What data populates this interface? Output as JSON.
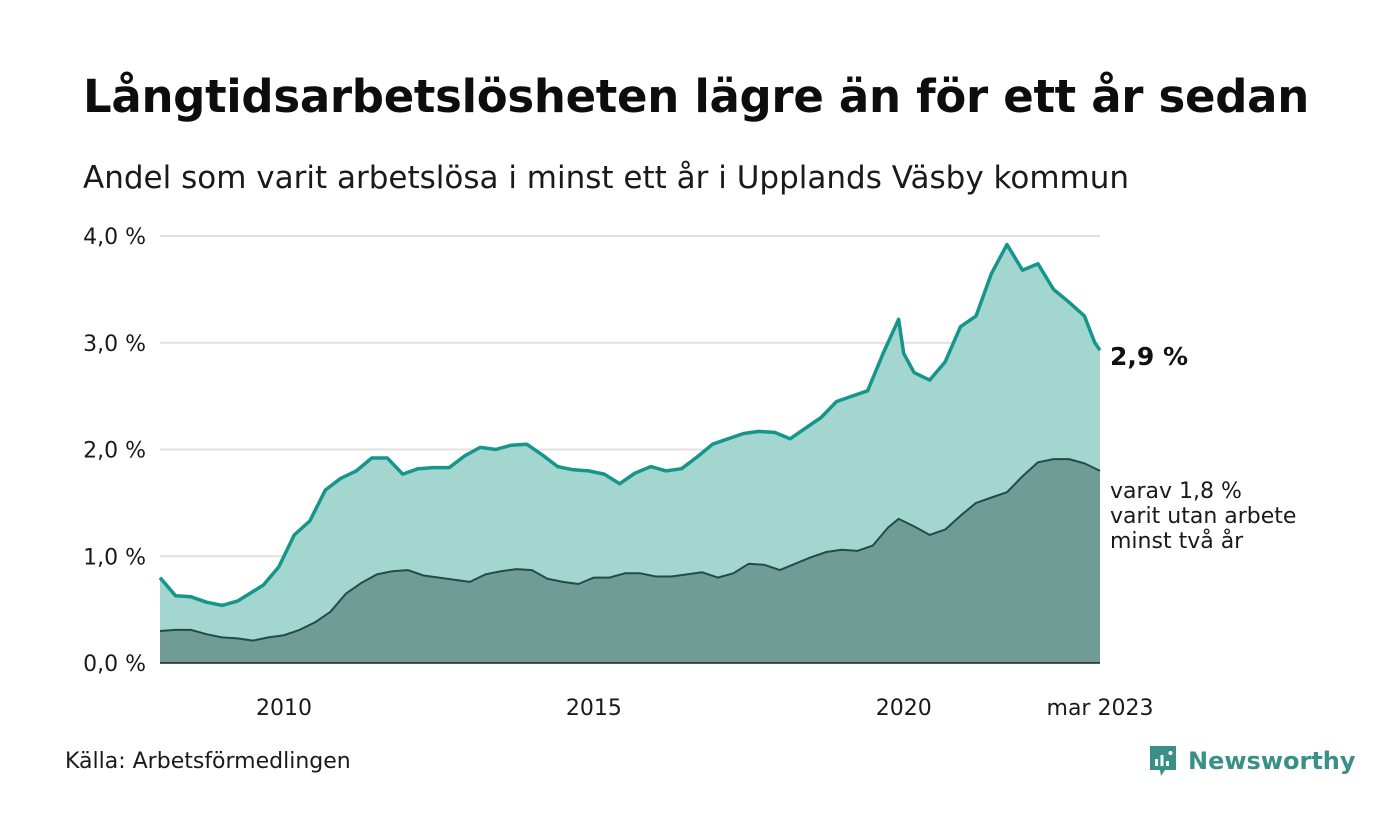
{
  "title": "Långtidsarbetslösheten lägre än för ett år sedan",
  "subtitle": "Andel som varit arbetslösa i minst ett år i Upplands Väsby kommun",
  "source": "Källa: Arbetsförmedlingen",
  "brand": {
    "name": "Newsworthy",
    "icon": "newsworthy-logo-icon",
    "color": "#3a8f86"
  },
  "colors": {
    "total_line": "#16968a",
    "total_fill": "#a2d6cf",
    "twoyear_line": "#214d47",
    "twoyear_fill": "#6f9d95",
    "grid": "#e1e1e1",
    "baseline": "#222222"
  },
  "chart_data": {
    "type": "area",
    "x_start": "2008-01",
    "x_end": "2023-03",
    "ylim": [
      0,
      4
    ],
    "yticks": [
      {
        "value": 0,
        "label": "0,0 %"
      },
      {
        "value": 1,
        "label": "1,0 %"
      },
      {
        "value": 2,
        "label": "2,0 %"
      },
      {
        "value": 3,
        "label": "3,0 %"
      },
      {
        "value": 4,
        "label": "4,0 %"
      }
    ],
    "xticks": [
      {
        "date": "2010-01",
        "label": "2010"
      },
      {
        "date": "2015-01",
        "label": "2015"
      },
      {
        "date": "2020-01",
        "label": "2020"
      },
      {
        "date": "2023-03",
        "label": "mar 2023"
      }
    ],
    "grid": true,
    "series": [
      {
        "key": "total",
        "end_label": "2,9 %",
        "points": [
          [
            "2008-01",
            0.8
          ],
          [
            "2008-04",
            0.63
          ],
          [
            "2008-07",
            0.62
          ],
          [
            "2008-10",
            0.57
          ],
          [
            "2009-01",
            0.54
          ],
          [
            "2009-04",
            0.58
          ],
          [
            "2009-07",
            0.67
          ],
          [
            "2009-09",
            0.73
          ],
          [
            "2009-12",
            0.9
          ],
          [
            "2010-03",
            1.2
          ],
          [
            "2010-06",
            1.33
          ],
          [
            "2010-09",
            1.62
          ],
          [
            "2010-12",
            1.73
          ],
          [
            "2011-03",
            1.8
          ],
          [
            "2011-06",
            1.92
          ],
          [
            "2011-09",
            1.92
          ],
          [
            "2011-12",
            1.77
          ],
          [
            "2012-03",
            1.82
          ],
          [
            "2012-06",
            1.83
          ],
          [
            "2012-09",
            1.83
          ],
          [
            "2012-12",
            1.94
          ],
          [
            "2013-03",
            2.02
          ],
          [
            "2013-06",
            2.0
          ],
          [
            "2013-09",
            2.04
          ],
          [
            "2013-12",
            2.05
          ],
          [
            "2014-03",
            1.95
          ],
          [
            "2014-06",
            1.84
          ],
          [
            "2014-09",
            1.81
          ],
          [
            "2014-12",
            1.8
          ],
          [
            "2015-03",
            1.77
          ],
          [
            "2015-06",
            1.68
          ],
          [
            "2015-09",
            1.78
          ],
          [
            "2015-12",
            1.84
          ],
          [
            "2016-03",
            1.8
          ],
          [
            "2016-06",
            1.82
          ],
          [
            "2016-09",
            1.93
          ],
          [
            "2016-12",
            2.05
          ],
          [
            "2017-03",
            2.1
          ],
          [
            "2017-06",
            2.15
          ],
          [
            "2017-09",
            2.17
          ],
          [
            "2017-12",
            2.16
          ],
          [
            "2018-03",
            2.1
          ],
          [
            "2018-06",
            2.2
          ],
          [
            "2018-09",
            2.3
          ],
          [
            "2018-12",
            2.45
          ],
          [
            "2019-03",
            2.5
          ],
          [
            "2019-06",
            2.55
          ],
          [
            "2019-09",
            2.9
          ],
          [
            "2019-12",
            3.22
          ],
          [
            "2020-01",
            2.9
          ],
          [
            "2020-03",
            2.72
          ],
          [
            "2020-06",
            2.65
          ],
          [
            "2020-09",
            2.82
          ],
          [
            "2020-12",
            3.15
          ],
          [
            "2021-03",
            3.25
          ],
          [
            "2021-06",
            3.65
          ],
          [
            "2021-09",
            3.92
          ],
          [
            "2021-12",
            3.68
          ],
          [
            "2022-03",
            3.74
          ],
          [
            "2022-06",
            3.5
          ],
          [
            "2022-09",
            3.38
          ],
          [
            "2022-12",
            3.25
          ],
          [
            "2023-02",
            3.0
          ],
          [
            "2023-03",
            2.93
          ]
        ]
      },
      {
        "key": "twoyear",
        "end_label": [
          "varav 1,8 %",
          "varit utan arbete",
          "minst två år"
        ],
        "points": [
          [
            "2008-01",
            0.3
          ],
          [
            "2008-04",
            0.31
          ],
          [
            "2008-07",
            0.31
          ],
          [
            "2008-10",
            0.27
          ],
          [
            "2009-01",
            0.24
          ],
          [
            "2009-04",
            0.23
          ],
          [
            "2009-07",
            0.21
          ],
          [
            "2009-10",
            0.24
          ],
          [
            "2010-01",
            0.26
          ],
          [
            "2010-04",
            0.31
          ],
          [
            "2010-07",
            0.38
          ],
          [
            "2010-10",
            0.48
          ],
          [
            "2011-01",
            0.65
          ],
          [
            "2011-04",
            0.75
          ],
          [
            "2011-07",
            0.83
          ],
          [
            "2011-10",
            0.86
          ],
          [
            "2012-01",
            0.87
          ],
          [
            "2012-04",
            0.82
          ],
          [
            "2012-07",
            0.8
          ],
          [
            "2012-10",
            0.78
          ],
          [
            "2013-01",
            0.76
          ],
          [
            "2013-04",
            0.83
          ],
          [
            "2013-07",
            0.86
          ],
          [
            "2013-10",
            0.88
          ],
          [
            "2014-01",
            0.87
          ],
          [
            "2014-04",
            0.79
          ],
          [
            "2014-07",
            0.76
          ],
          [
            "2014-10",
            0.74
          ],
          [
            "2015-01",
            0.8
          ],
          [
            "2015-04",
            0.8
          ],
          [
            "2015-07",
            0.84
          ],
          [
            "2015-10",
            0.84
          ],
          [
            "2016-01",
            0.81
          ],
          [
            "2016-04",
            0.81
          ],
          [
            "2016-07",
            0.83
          ],
          [
            "2016-10",
            0.85
          ],
          [
            "2017-01",
            0.8
          ],
          [
            "2017-04",
            0.84
          ],
          [
            "2017-07",
            0.93
          ],
          [
            "2017-10",
            0.92
          ],
          [
            "2018-01",
            0.87
          ],
          [
            "2018-04",
            0.93
          ],
          [
            "2018-07",
            0.99
          ],
          [
            "2018-10",
            1.04
          ],
          [
            "2019-01",
            1.06
          ],
          [
            "2019-04",
            1.05
          ],
          [
            "2019-07",
            1.1
          ],
          [
            "2019-10",
            1.27
          ],
          [
            "2019-12",
            1.35
          ],
          [
            "2020-03",
            1.28
          ],
          [
            "2020-06",
            1.2
          ],
          [
            "2020-09",
            1.25
          ],
          [
            "2020-12",
            1.38
          ],
          [
            "2021-03",
            1.5
          ],
          [
            "2021-06",
            1.55
          ],
          [
            "2021-09",
            1.6
          ],
          [
            "2021-12",
            1.75
          ],
          [
            "2022-03",
            1.88
          ],
          [
            "2022-06",
            1.91
          ],
          [
            "2022-09",
            1.91
          ],
          [
            "2022-12",
            1.87
          ],
          [
            "2023-03",
            1.8
          ]
        ]
      }
    ]
  }
}
